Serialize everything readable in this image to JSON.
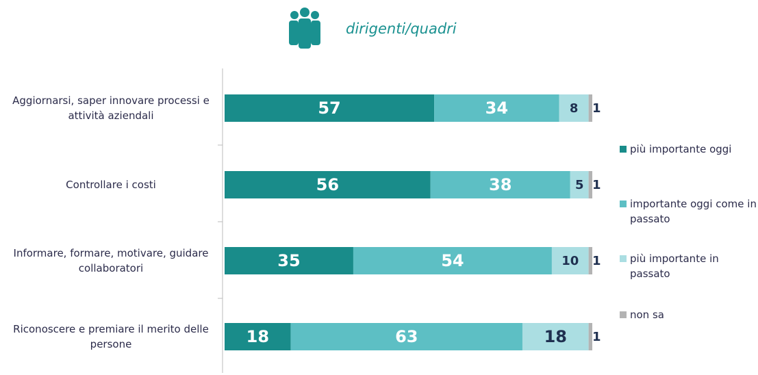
{
  "chart_data": {
    "type": "stacked-bar-horizontal",
    "title": "dirigenti/quadri",
    "categories": [
      "Aggiornarsi, saper innovare processi e attività aziendali",
      "Controllare i costi",
      "Informare, formare, motivare, guidare collaboratori",
      "Riconoscere e premiare  il merito delle persone"
    ],
    "series": [
      {
        "name": "più importante oggi",
        "color": "#198c8a",
        "values": [
          57,
          56,
          35,
          18
        ]
      },
      {
        "name": "importante oggi come in passato",
        "color": "#5dbfc4",
        "values": [
          34,
          38,
          54,
          63
        ]
      },
      {
        "name": "più importante in passato",
        "color": "#abdee2",
        "values": [
          8,
          5,
          10,
          18
        ]
      },
      {
        "name": "non sa",
        "color": "#b3b3b3",
        "values": [
          1,
          1,
          1,
          1
        ]
      }
    ],
    "xlim": [
      0,
      100
    ]
  }
}
